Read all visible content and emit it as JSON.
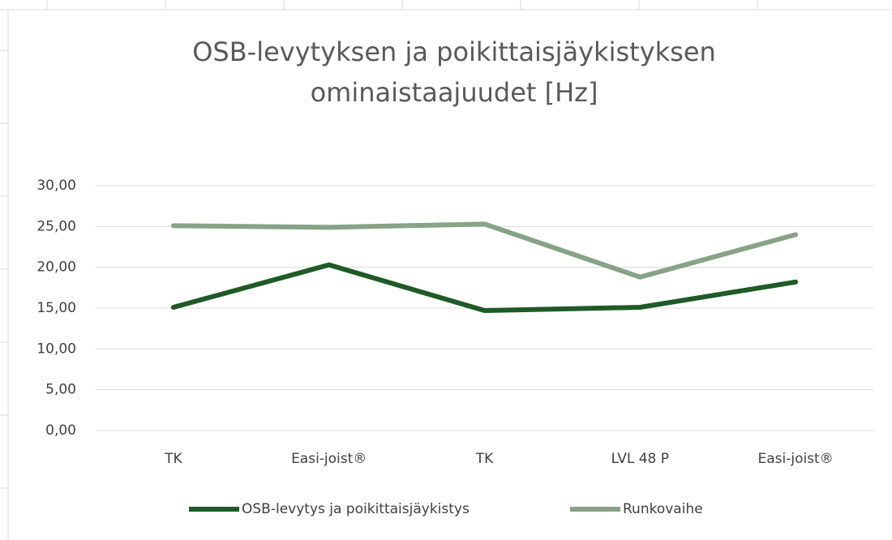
{
  "chart_data": {
    "type": "line",
    "title": [
      "OSB-levytyksen ja poikittaisjäykistyksen",
      "ominaistaajuudet [Hz]"
    ],
    "categories": [
      "TK",
      "Easi-joist®",
      "TK",
      "LVL 48 P",
      "Easi-joist®"
    ],
    "series": [
      {
        "name": "OSB-levytys ja poikittaisjäykistys",
        "color": "#1f5a27",
        "values": [
          15.1,
          20.3,
          14.7,
          15.1,
          18.2
        ]
      },
      {
        "name": "Runkovaihe",
        "color": "#87a386",
        "values": [
          25.1,
          24.9,
          25.3,
          18.8,
          24.0
        ]
      }
    ],
    "ylim": [
      0,
      30
    ],
    "yticks": [
      {
        "value": 0,
        "label": "0,00"
      },
      {
        "value": 5,
        "label": "5,00"
      },
      {
        "value": 10,
        "label": "10,00"
      },
      {
        "value": 15,
        "label": "15,00"
      },
      {
        "value": 20,
        "label": "20,00"
      },
      {
        "value": 25,
        "label": "25,00"
      },
      {
        "value": 30,
        "label": "30,00"
      }
    ],
    "grid": true,
    "legend": "bottom"
  }
}
